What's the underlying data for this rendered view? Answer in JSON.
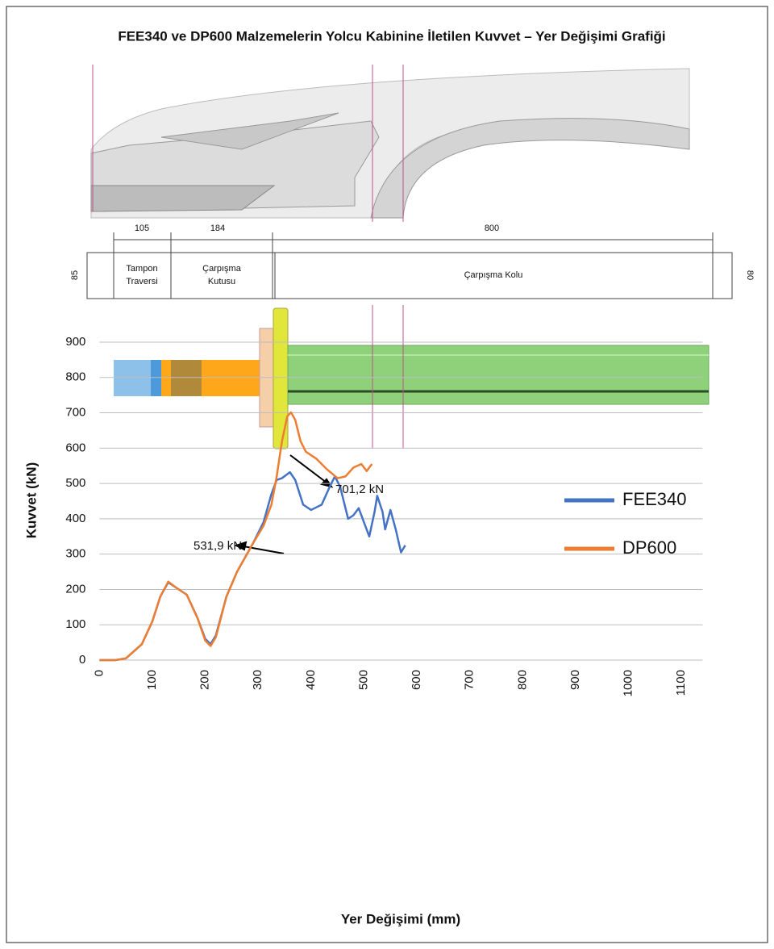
{
  "chart_data": {
    "type": "line",
    "title": "FEE340 ve DP600 Malzemelerin Yolcu Kabinine İletilen Kuvvet – Yer Değişimi Grafiği",
    "xlabel": "Yer Değişimi (mm)",
    "ylabel": "Kuvvet (kN)",
    "xlim": [
      0,
      1140
    ],
    "ylim": [
      0,
      900
    ],
    "xticks": [
      0,
      100,
      200,
      300,
      400,
      500,
      600,
      700,
      800,
      900,
      1000,
      1100
    ],
    "yticks": [
      0,
      100,
      200,
      300,
      400,
      500,
      600,
      700,
      800,
      900
    ],
    "grid": true,
    "legend": "right",
    "annotations": [
      "701,2 kN",
      "531,9 kN"
    ],
    "series": [
      {
        "name": "FEE340",
        "color": "#4472c4",
        "x": [
          0,
          30,
          50,
          65,
          80,
          100,
          115,
          130,
          145,
          165,
          185,
          200,
          210,
          220,
          240,
          260,
          290,
          310,
          325,
          335,
          345,
          360,
          370,
          385,
          400,
          420,
          435,
          445,
          455,
          470,
          480,
          490,
          500,
          510,
          520,
          525,
          535,
          540,
          550,
          560,
          570,
          578
        ],
        "values": [
          0,
          0,
          5,
          25,
          45,
          110,
          180,
          220,
          205,
          185,
          120,
          60,
          45,
          70,
          180,
          250,
          330,
          390,
          470,
          510,
          515,
          531.9,
          510,
          440,
          425,
          440,
          490,
          520,
          490,
          400,
          410,
          430,
          390,
          350,
          420,
          465,
          420,
          370,
          425,
          370,
          305,
          325
        ]
      },
      {
        "name": "DP600",
        "color": "#ed7d31",
        "x": [
          0,
          30,
          50,
          65,
          80,
          100,
          115,
          130,
          145,
          165,
          185,
          200,
          210,
          220,
          240,
          260,
          290,
          310,
          325,
          335,
          345,
          355,
          362,
          370,
          380,
          390,
          410,
          430,
          450,
          465,
          480,
          495,
          505,
          515
        ],
        "values": [
          0,
          0,
          5,
          25,
          45,
          110,
          180,
          222,
          205,
          185,
          120,
          55,
          40,
          65,
          180,
          250,
          330,
          380,
          440,
          520,
          620,
          690,
          701.2,
          680,
          620,
          590,
          570,
          540,
          515,
          520,
          545,
          555,
          535,
          555
        ]
      }
    ]
  },
  "diagram": {
    "dimensions": [
      105,
      184,
      800
    ],
    "heights": [
      85,
      80
    ],
    "parts": [
      [
        "Tampon",
        "Traversi"
      ],
      [
        "Çarpışma",
        "Kutusu"
      ],
      [
        "Çarpışma Kolu"
      ]
    ]
  }
}
